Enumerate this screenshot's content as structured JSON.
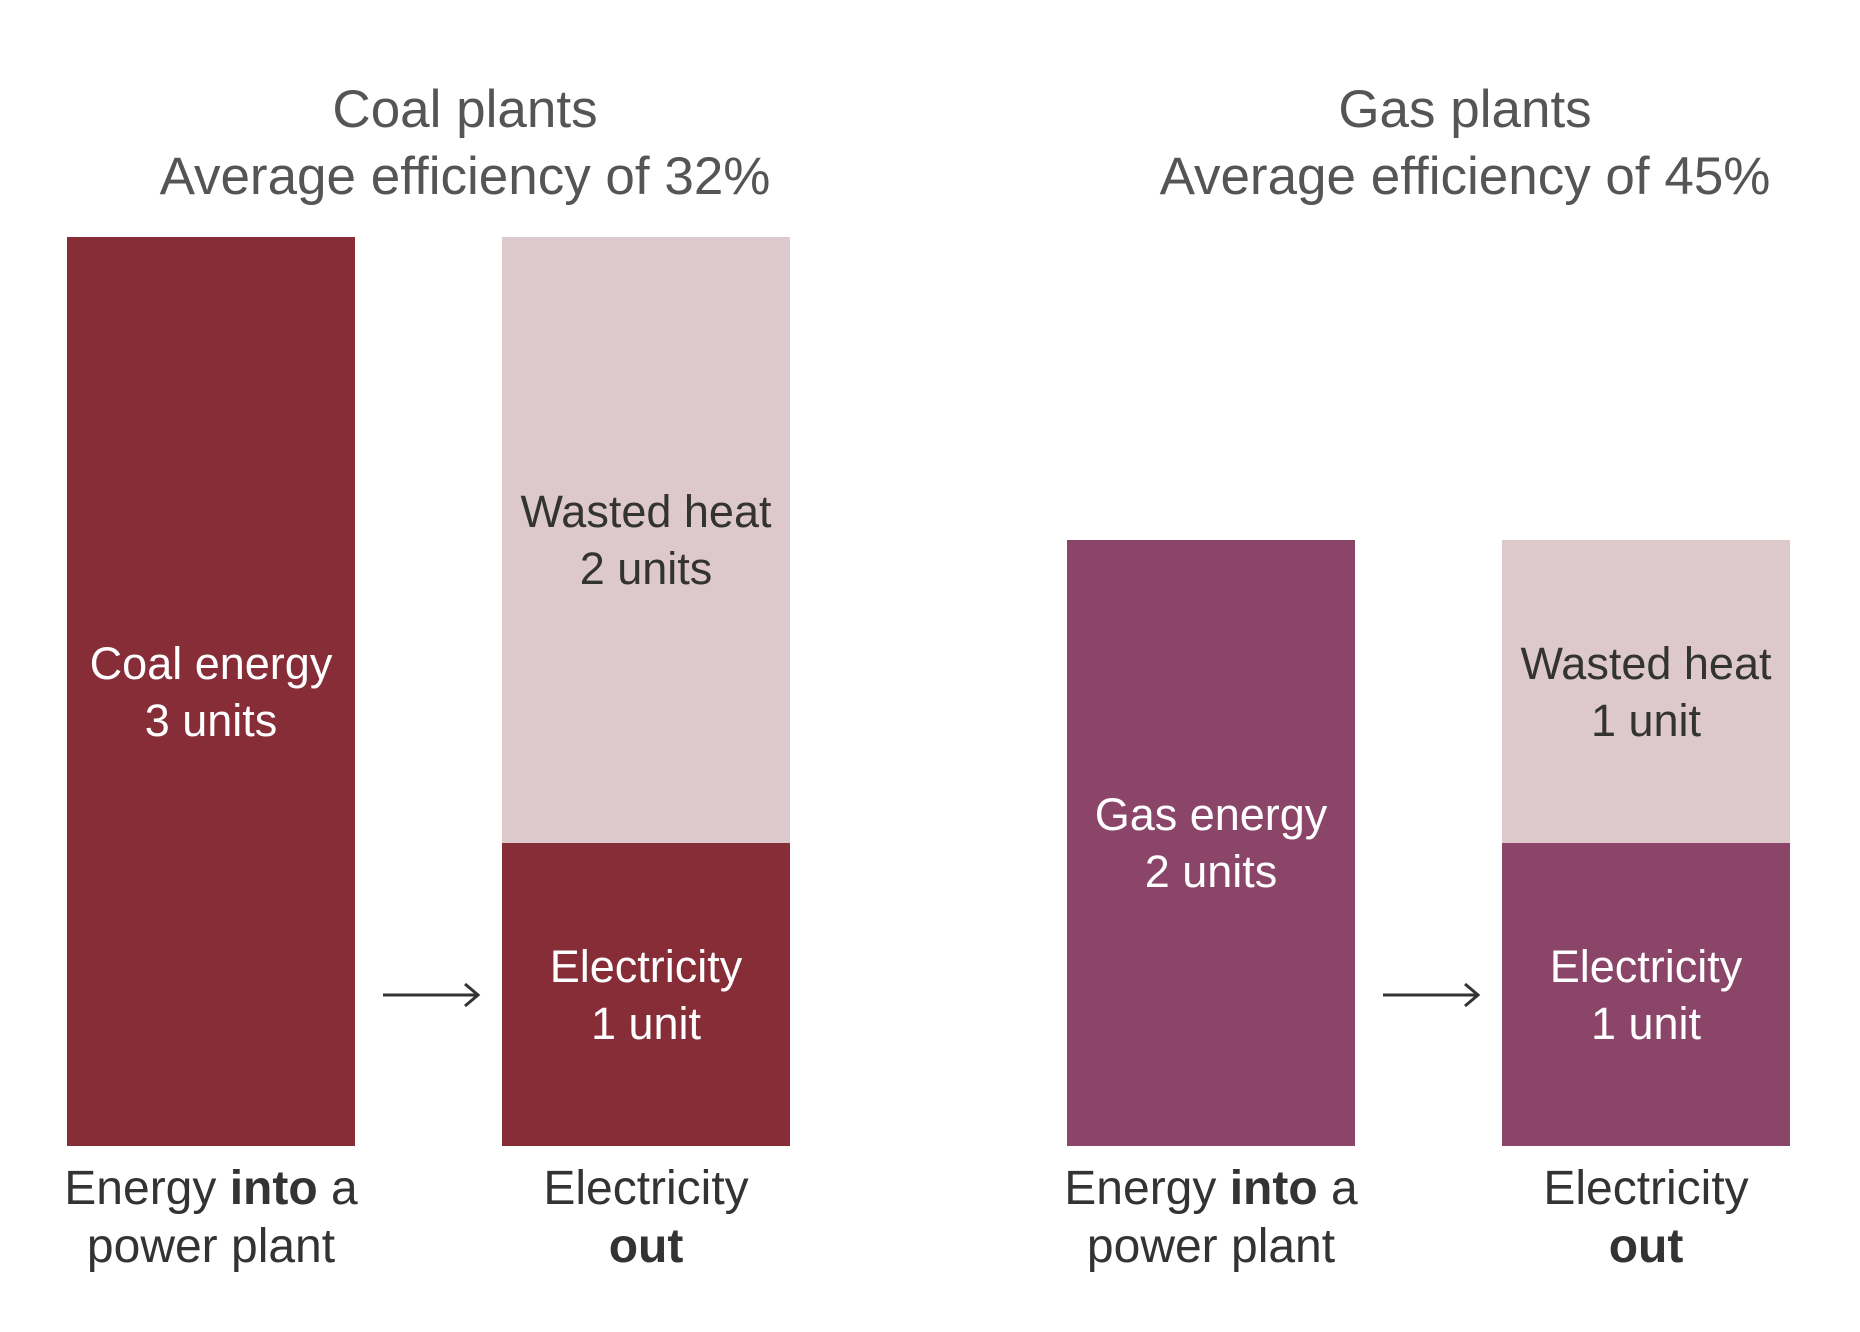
{
  "colors": {
    "coal": "#862D38",
    "gas": "#8B4569",
    "wasted_heat": "#DDC9CB",
    "arrow": "#333333"
  },
  "coal": {
    "title": "Coal plants",
    "subtitle": "Average efficiency of 32%",
    "input_units": 3,
    "electricity_units": 1,
    "wasted_units": 2,
    "input_label": {
      "line1": "Coal energy",
      "line2": "3 units"
    },
    "wasted_label": {
      "line1": "Wasted heat",
      "line2": "2 units"
    },
    "electricity_label": {
      "line1": "Electricity",
      "line2": "1 unit"
    },
    "caption_in": {
      "pre": "Energy ",
      "bold": "into",
      "post": " a",
      "line2": "power plant"
    },
    "caption_out": {
      "line1": "Electricity",
      "bold": "out"
    }
  },
  "gas": {
    "title": "Gas plants",
    "subtitle": "Average efficiency of 45%",
    "input_units": 2,
    "electricity_units": 1,
    "wasted_units": 1,
    "input_label": {
      "line1": "Gas energy",
      "line2": "2 units"
    },
    "wasted_label": {
      "line1": "Wasted heat",
      "line2": "1 unit"
    },
    "electricity_label": {
      "line1": "Electricity",
      "line2": "1 unit"
    },
    "caption_in": {
      "pre": "Energy ",
      "bold": "into",
      "post": " a",
      "line2": "power plant"
    },
    "caption_out": {
      "line1": "Electricity",
      "bold": "out"
    }
  }
}
